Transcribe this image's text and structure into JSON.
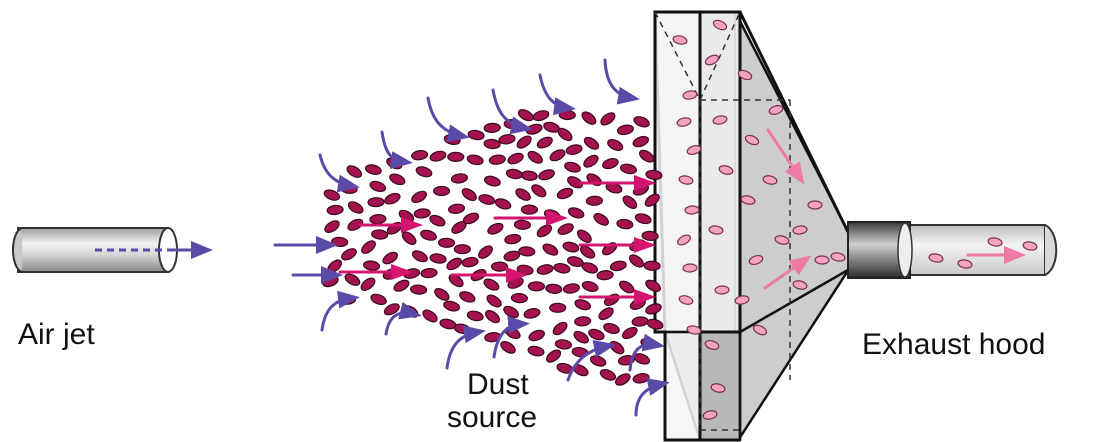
{
  "labels": {
    "air_jet": "Air jet",
    "dust_source_line1": "Dust",
    "dust_source_line2": "source",
    "exhaust_hood": "Exhaust hood"
  },
  "colors": {
    "particle_fill": "#a4134f",
    "particle_inside_fill": "#f2a3bf",
    "arrow_blue": "#5b4aa8",
    "arrow_magenta": "#d4146e",
    "arrow_pink": "#ee7aa8",
    "metal_light": "#e8e8e8",
    "metal_dark": "#9a9a9a"
  },
  "icons": {
    "inlet": "air-jet-pipe-icon",
    "hood": "exhaust-hood-icon",
    "outlet": "exhaust-duct-icon"
  }
}
